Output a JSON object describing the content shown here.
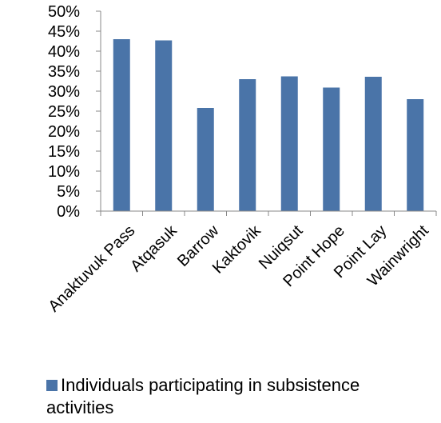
{
  "chart_data": {
    "type": "bar",
    "categories": [
      "Anaktuvuk Pass",
      "Atqasuk",
      "Barrow",
      "Kaktovik",
      "Nuiqsut",
      "Point Hope",
      "Point Lay",
      "Wainwright"
    ],
    "series": [
      {
        "name": "Individuals participating in subsistence activities",
        "values": [
          43,
          42.7,
          25.8,
          33,
          33.7,
          30.9,
          33.6,
          28
        ]
      }
    ],
    "ylim": [
      0,
      50
    ],
    "yticks": [
      "0%",
      "5%",
      "10%",
      "15%",
      "20%",
      "25%",
      "30%",
      "35%",
      "40%",
      "45%",
      "50%"
    ],
    "grid": false,
    "legend": "bottom",
    "bar_color": "#4a74a8"
  }
}
